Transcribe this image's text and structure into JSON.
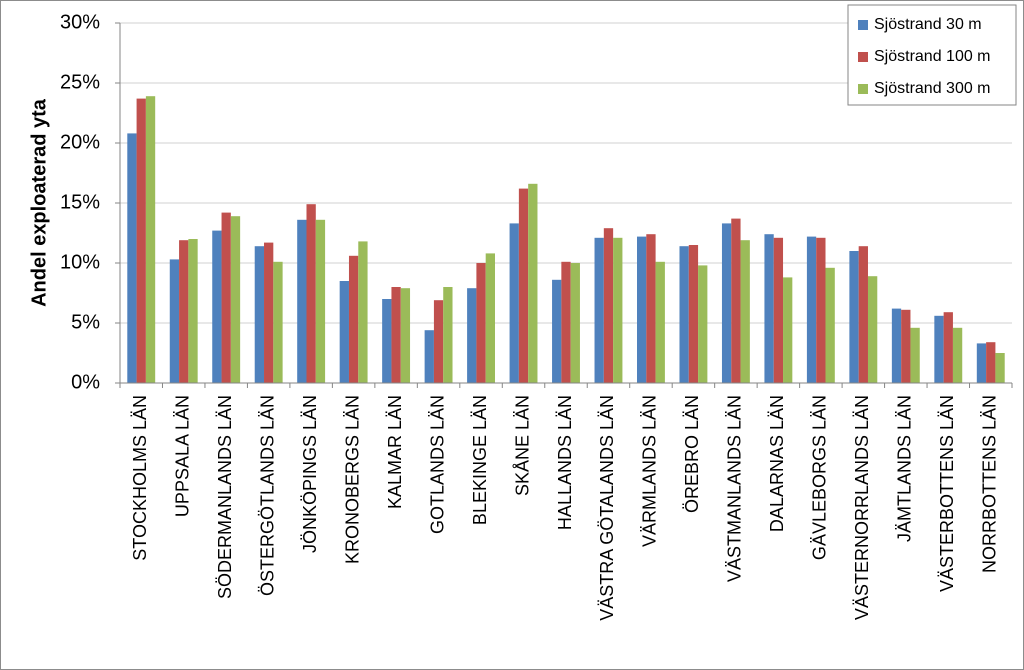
{
  "chart_data": {
    "type": "bar",
    "y_label": "Andel exploaterad yta",
    "categories": [
      "STOCKHOLMS LÄN",
      "UPPSALA LÄN",
      "SÖDERMANLANDS LÄN",
      "ÖSTERGÖTLANDS LÄN",
      "JÖNKÖPINGS LÄN",
      "KRONOBERGS LÄN",
      "KALMAR LÄN",
      "GOTLANDS LÄN",
      "BLEKINGE LÄN",
      "SKÅNE LÄN",
      "HALLANDS LÄN",
      "VÄSTRA GÖTALANDS LÄN",
      "VÄRMLANDS LÄN",
      "ÖREBRO LÄN",
      "VÄSTMANLANDS LÄN",
      "DALARNAS LÄN",
      "GÄVLEBORGS LÄN",
      "VÄSTERNORRLANDS LÄN",
      "JÄMTLANDS LÄN",
      "VÄSTERBOTTENS LÄN",
      "NORRBOTTENS LÄN"
    ],
    "series": [
      {
        "name": "Sjöstrand 30 m",
        "color": "#4f81bd",
        "values": [
          20.8,
          10.3,
          12.7,
          11.4,
          13.6,
          8.5,
          7.0,
          4.4,
          7.9,
          13.3,
          8.6,
          12.1,
          12.2,
          11.4,
          13.3,
          12.4,
          12.2,
          11.0,
          6.2,
          5.6,
          3.3
        ]
      },
      {
        "name": "Sjöstrand 100 m",
        "color": "#c0504d",
        "values": [
          23.7,
          11.9,
          14.2,
          11.7,
          14.9,
          10.6,
          8.0,
          6.9,
          10.0,
          16.2,
          10.1,
          12.9,
          12.4,
          11.5,
          13.7,
          12.1,
          12.1,
          11.4,
          6.1,
          5.9,
          3.4
        ]
      },
      {
        "name": "Sjöstrand 300 m",
        "color": "#9bbb59",
        "values": [
          23.9,
          12.0,
          13.9,
          10.1,
          13.6,
          11.8,
          7.9,
          8.0,
          10.8,
          16.6,
          10.0,
          12.1,
          10.1,
          9.8,
          11.9,
          8.8,
          9.6,
          8.9,
          4.6,
          4.6,
          2.5
        ]
      }
    ],
    "ylim": [
      0,
      30
    ],
    "yticks": [
      {
        "value": 0,
        "label": "0%"
      },
      {
        "value": 5,
        "label": "5%"
      },
      {
        "value": 10,
        "label": "10%"
      },
      {
        "value": 15,
        "label": "15%"
      },
      {
        "value": 20,
        "label": "20%"
      },
      {
        "value": 25,
        "label": "25%"
      },
      {
        "value": 30,
        "label": "30%"
      }
    ],
    "grid": true,
    "legend": "upper right"
  }
}
